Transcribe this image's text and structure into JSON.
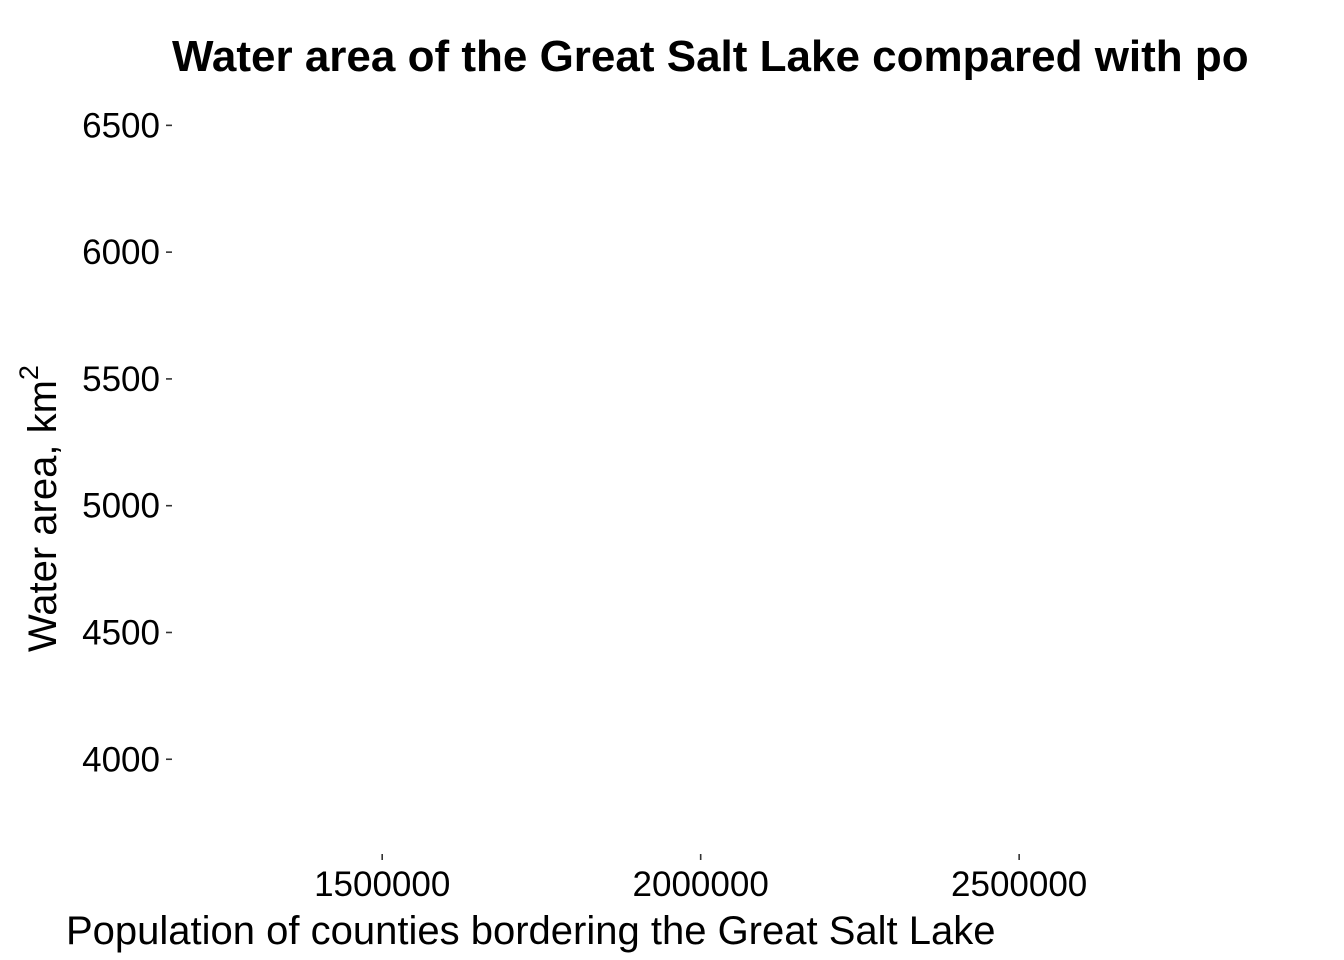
{
  "chart_data": {
    "type": "scatter",
    "title": "Water area of the Great Salt Lake compared with po",
    "xlabel": "Population of counties bordering the Great Salt Lake",
    "ylabel": "Water area, km",
    "ylabel_superscript": "2",
    "x_ticks": [
      1500000,
      2000000,
      2500000
    ],
    "x_tick_labels": [
      "1500000",
      "2000000",
      "2500000"
    ],
    "y_ticks": [
      4000,
      4500,
      5000,
      5500,
      6000,
      6500
    ],
    "y_tick_labels": [
      "4000",
      "4500",
      "5000",
      "5500",
      "6000",
      "6500"
    ],
    "xlim": [
      1170000,
      3010000
    ],
    "ylim": [
      3650,
      6600
    ],
    "points": [],
    "grid": false,
    "legend": "none",
    "colors": {
      "background": "#ffffff",
      "text": "#000000",
      "ticks": "#333333"
    }
  }
}
